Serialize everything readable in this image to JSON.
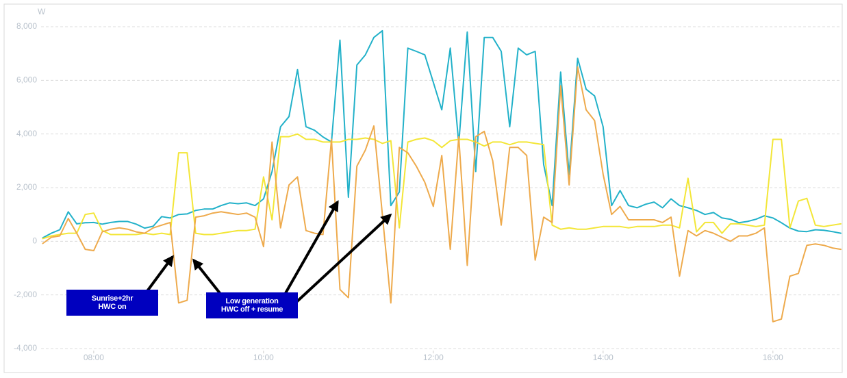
{
  "chart_data": {
    "type": "line",
    "y_unit": "W",
    "x": [
      7.4,
      7.5,
      7.6,
      7.7,
      7.8,
      7.9,
      8.0,
      8.1,
      8.2,
      8.3,
      8.4,
      8.5,
      8.6,
      8.7,
      8.8,
      8.9,
      9.0,
      9.1,
      9.2,
      9.3,
      9.4,
      9.5,
      9.6,
      9.7,
      9.8,
      9.9,
      10.0,
      10.1,
      10.2,
      10.3,
      10.4,
      10.5,
      10.6,
      10.7,
      10.8,
      10.9,
      11.0,
      11.1,
      11.2,
      11.3,
      11.4,
      11.5,
      11.6,
      11.7,
      11.8,
      11.9,
      12.0,
      12.1,
      12.2,
      12.3,
      12.4,
      12.5,
      12.6,
      12.7,
      12.8,
      12.9,
      13.0,
      13.1,
      13.2,
      13.3,
      13.4,
      13.5,
      13.6,
      13.7,
      13.8,
      13.9,
      14.0,
      14.1,
      14.2,
      14.3,
      14.4,
      14.5,
      14.6,
      14.7,
      14.8,
      14.9,
      15.0,
      15.1,
      15.2,
      15.3,
      15.4,
      15.5,
      15.6,
      15.7,
      15.8,
      15.9,
      16.0,
      16.1,
      16.2,
      16.3,
      16.4,
      16.5,
      16.6,
      16.7,
      16.8
    ],
    "series": [
      {
        "color": "#22b1c9",
        "values": [
          130,
          300,
          430,
          1100,
          650,
          690,
          700,
          640,
          700,
          740,
          740,
          640,
          490,
          560,
          920,
          870,
          1000,
          1020,
          1150,
          1200,
          1200,
          1330,
          1430,
          1400,
          1430,
          1330,
          1580,
          2600,
          4270,
          4650,
          6400,
          4270,
          4140,
          3890,
          3700,
          7500,
          1640,
          6570,
          6950,
          7600,
          7850,
          1330,
          1840,
          7200,
          7080,
          6950,
          5930,
          4900,
          7200,
          3630,
          7800,
          2600,
          7600,
          7600,
          7080,
          4270,
          7200,
          6950,
          7080,
          2860,
          1330,
          6310,
          2480,
          6820,
          5670,
          5420,
          4270,
          1330,
          1890,
          1330,
          1250,
          1380,
          1460,
          1250,
          1580,
          1330,
          1250,
          1150,
          1000,
          1070,
          870,
          820,
          690,
          740,
          820,
          950,
          870,
          690,
          490,
          380,
          360,
          430,
          410,
          360,
          300
        ]
      },
      {
        "color": "#f3e637",
        "values": [
          100,
          200,
          250,
          300,
          300,
          1000,
          1050,
          400,
          250,
          250,
          250,
          250,
          300,
          250,
          300,
          250,
          3300,
          3300,
          300,
          250,
          250,
          300,
          350,
          400,
          400,
          450,
          2400,
          800,
          3900,
          3900,
          4000,
          3800,
          3800,
          3700,
          3700,
          3700,
          3800,
          3800,
          3850,
          3800,
          3650,
          3750,
          500,
          3700,
          3800,
          3850,
          3750,
          3500,
          3750,
          3800,
          3800,
          3700,
          3550,
          3700,
          3700,
          3600,
          3700,
          3700,
          3650,
          3600,
          600,
          450,
          500,
          450,
          450,
          500,
          550,
          550,
          550,
          500,
          550,
          550,
          550,
          600,
          600,
          500,
          2350,
          350,
          700,
          700,
          300,
          650,
          650,
          600,
          550,
          600,
          3800,
          3800,
          500,
          1500,
          1600,
          600,
          550,
          600,
          650
        ]
      },
      {
        "color": "#eeaa4c",
        "values": [
          -80,
          150,
          200,
          850,
          300,
          -300,
          -350,
          350,
          450,
          500,
          450,
          350,
          300,
          500,
          600,
          700,
          -2300,
          -2200,
          900,
          950,
          1050,
          1100,
          1050,
          1000,
          1050,
          900,
          -200,
          3700,
          500,
          2100,
          2400,
          400,
          300,
          250,
          3800,
          -1800,
          -2100,
          2800,
          3400,
          4300,
          1000,
          -2300,
          3500,
          3300,
          2800,
          2200,
          1300,
          3200,
          -300,
          3900,
          -900,
          3900,
          4100,
          3000,
          600,
          3500,
          3500,
          3200,
          -700,
          900,
          700,
          5800,
          2100,
          6500,
          4900,
          4500,
          2500,
          1000,
          1300,
          800,
          800,
          800,
          800,
          700,
          900,
          -1300,
          400,
          200,
          400,
          300,
          150,
          0,
          200,
          200,
          300,
          500,
          -3000,
          -2900,
          -1300,
          -1200,
          -150,
          -100,
          -150,
          -250,
          -300
        ]
      }
    ],
    "xlim": [
      7.38,
      16.8
    ],
    "xticks": [
      {
        "value": 8,
        "label": "08:00"
      },
      {
        "value": 10,
        "label": "10:00"
      },
      {
        "value": 12,
        "label": "12:00"
      },
      {
        "value": 14,
        "label": "14:00"
      },
      {
        "value": 16,
        "label": "16:00"
      }
    ],
    "ylim": [
      -4000,
      8000
    ],
    "yticks": [
      {
        "value": -4000,
        "label": "-4,000"
      },
      {
        "value": -2000,
        "label": "-2,000"
      },
      0,
      {
        "value": 2000,
        "label": "2,000"
      },
      {
        "value": 4000,
        "label": "4,000"
      },
      {
        "value": 6000,
        "label": "6,000"
      },
      {
        "value": 8000,
        "label": "8,000"
      }
    ],
    "grid": true,
    "annotations": [
      {
        "lines": [
          "Sunrise+2hr",
          "HWC on"
        ]
      },
      {
        "lines": [
          "Low generation",
          "HWC off + resume"
        ]
      }
    ]
  }
}
